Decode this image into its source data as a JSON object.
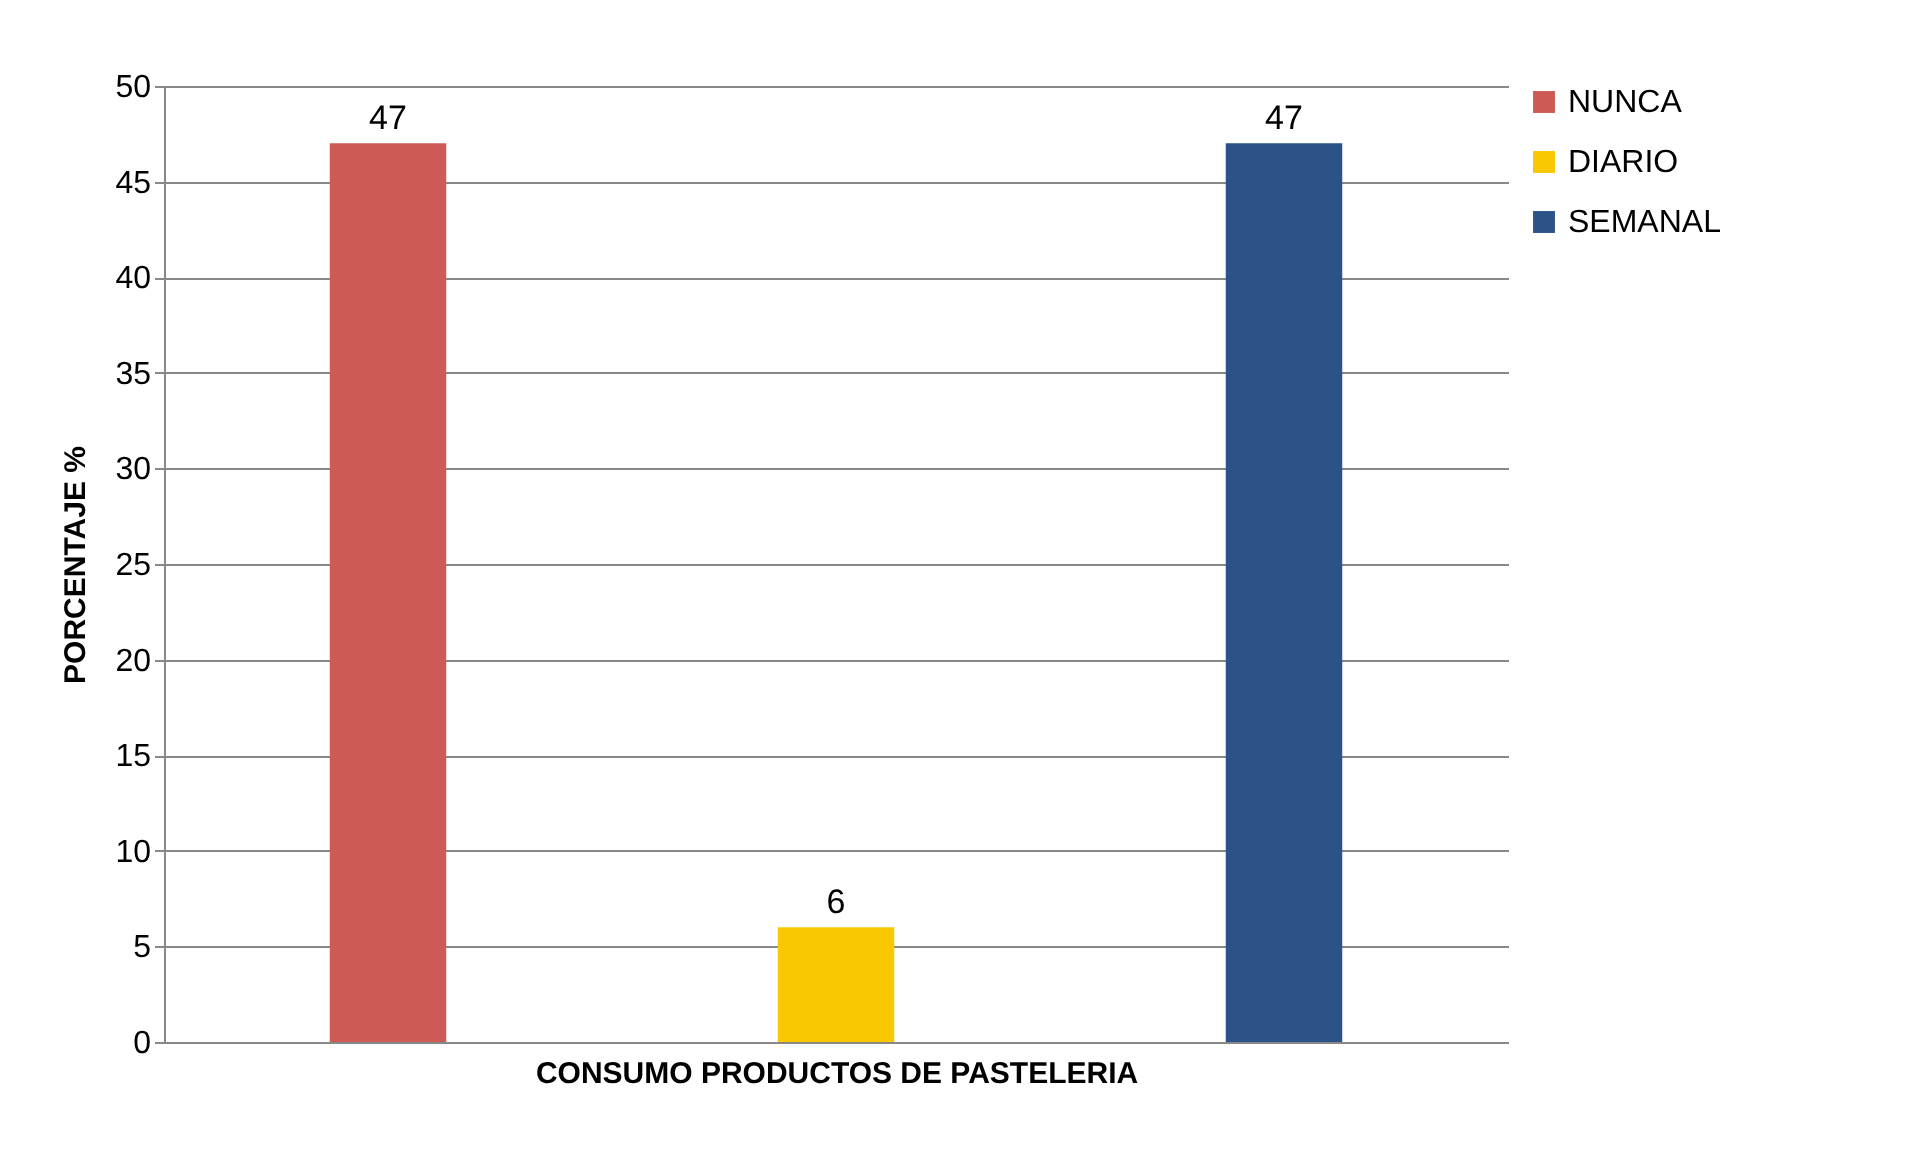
{
  "chart_data": {
    "type": "bar",
    "xlabel": "CONSUMO PRODUCTOS DE PASTELERIA",
    "ylabel": "PORCENTAJE %",
    "categories": [
      null
    ],
    "series": [
      {
        "name": "NUNCA",
        "color": "#cd5a55",
        "values": [
          47
        ]
      },
      {
        "name": "DIARIO",
        "color": "#f9c800",
        "values": [
          6
        ]
      },
      {
        "name": "SEMANAL",
        "color": "#2b5387",
        "values": [
          47
        ]
      }
    ],
    "ylim": [
      0,
      50
    ],
    "yticks": [
      0,
      5,
      10,
      15,
      20,
      25,
      30,
      35,
      40,
      45,
      50
    ],
    "grid": "y",
    "legend": "right",
    "data_labels": true
  }
}
